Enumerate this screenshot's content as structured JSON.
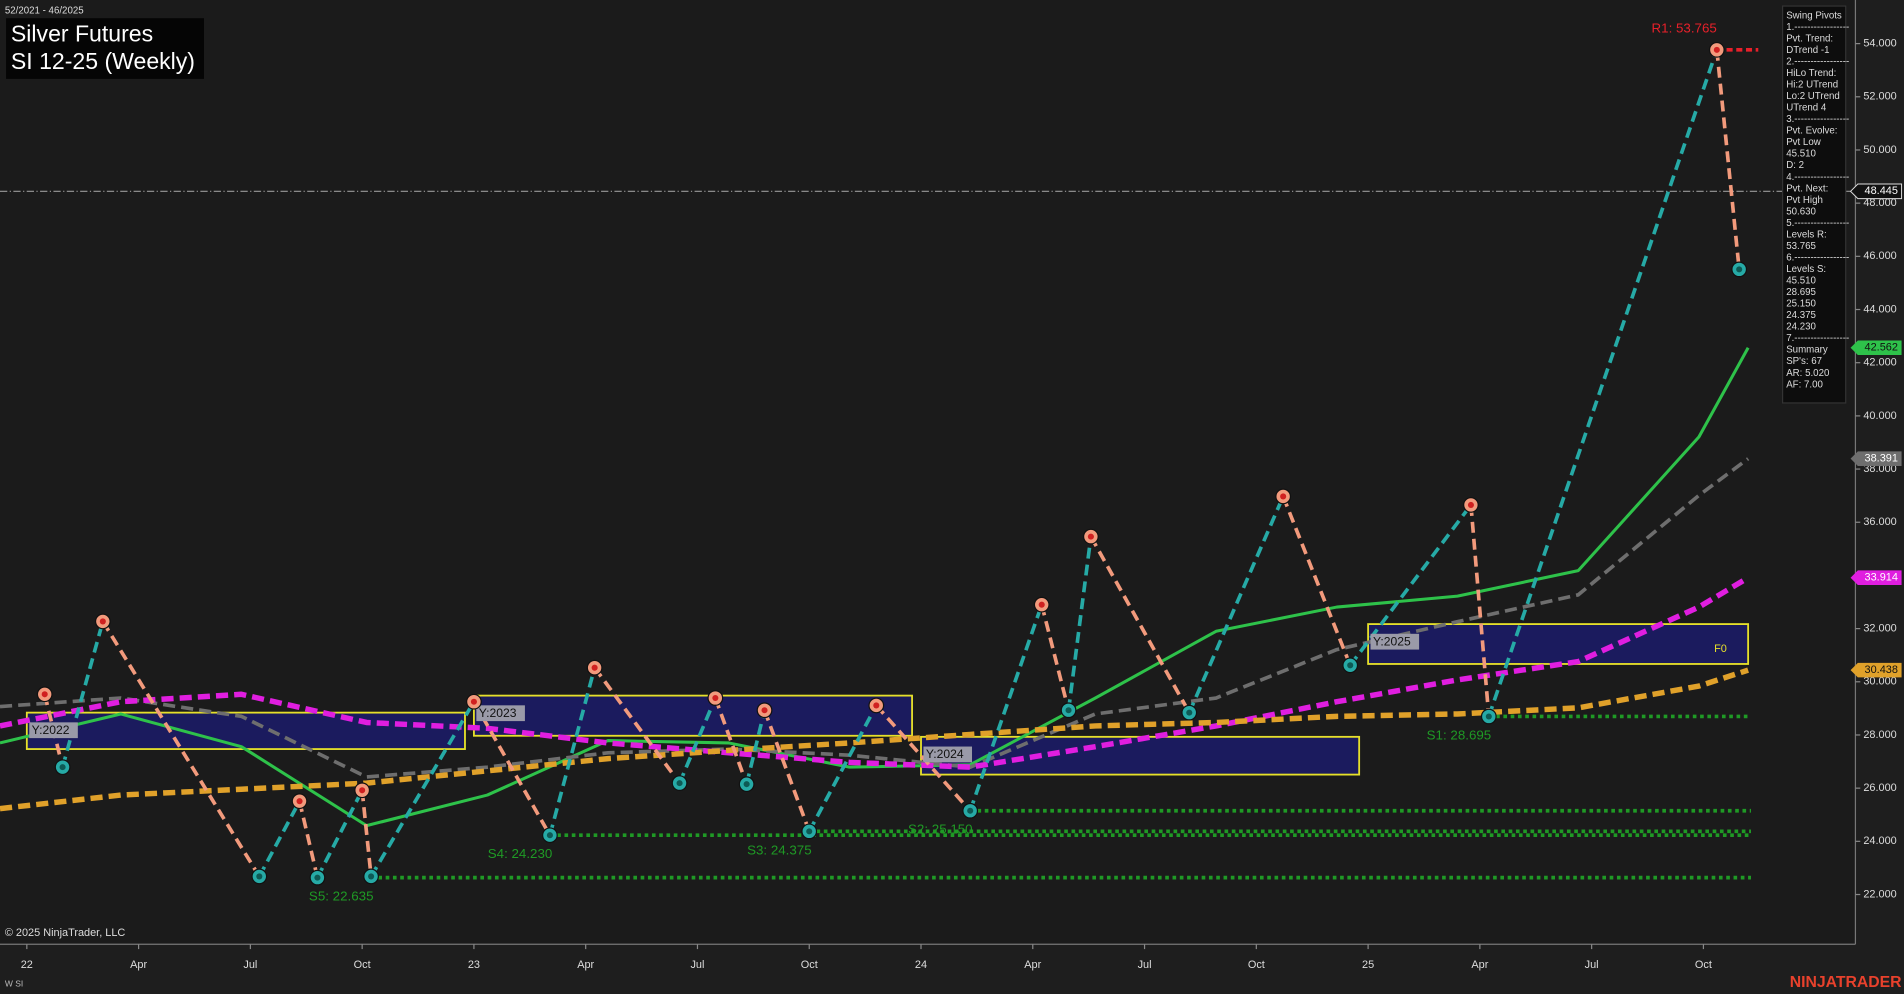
{
  "chart_data": {
    "type": "line",
    "date_range": "52/2021 - 46/2025",
    "title": "Silver Futures",
    "subtitle": "SI 12-25 (Weekly)",
    "xlim": [
      2021.94,
      2026.09
    ],
    "xticks": [
      {
        "value": 2022,
        "label": "22"
      },
      {
        "value": 2022.25,
        "label": "Apr"
      },
      {
        "value": 2022.5,
        "label": "Jul"
      },
      {
        "value": 2022.75,
        "label": "Oct"
      },
      {
        "value": 2023,
        "label": "23"
      },
      {
        "value": 2023.25,
        "label": "Apr"
      },
      {
        "value": 2023.5,
        "label": "Jul"
      },
      {
        "value": 2023.75,
        "label": "Oct"
      },
      {
        "value": 2024,
        "label": "24"
      },
      {
        "value": 2024.25,
        "label": "Apr"
      },
      {
        "value": 2024.5,
        "label": "Jul"
      },
      {
        "value": 2024.75,
        "label": "Oct"
      },
      {
        "value": 2025,
        "label": "25"
      },
      {
        "value": 2025.25,
        "label": "Apr"
      },
      {
        "value": 2025.5,
        "label": "Jul"
      },
      {
        "value": 2025.75,
        "label": "Oct"
      }
    ],
    "ylim": [
      20.13,
      55.64
    ],
    "yticks": [
      {
        "value": 22,
        "label": "22.000"
      },
      {
        "value": 24,
        "label": "24.000"
      },
      {
        "value": 26,
        "label": "26.000"
      },
      {
        "value": 28,
        "label": "28.000"
      },
      {
        "value": 30,
        "label": "30.000"
      },
      {
        "value": 32,
        "label": "32.000"
      },
      {
        "value": 34,
        "label": "34.000"
      },
      {
        "value": 36,
        "label": "36.000"
      },
      {
        "value": 38,
        "label": "38.000"
      },
      {
        "value": 40,
        "label": "40.000"
      },
      {
        "value": 42,
        "label": "42.000"
      },
      {
        "value": 44,
        "label": "44.000"
      },
      {
        "value": 46,
        "label": "46.000"
      },
      {
        "value": 48,
        "label": "48.000"
      },
      {
        "value": 50,
        "label": "50.000"
      },
      {
        "value": 52,
        "label": "52.000"
      },
      {
        "value": 54,
        "label": "54.000"
      }
    ],
    "last_price": 48.445,
    "pivots": {
      "up_color": "#26aaa6",
      "down_color": "#f29a7c",
      "x": [
        2022.04,
        2022.08,
        2022.17,
        2022.52,
        2022.61,
        2022.65,
        2022.75,
        2022.77,
        2023.0,
        2023.17,
        2023.27,
        2023.46,
        2023.54,
        2023.61,
        2023.65,
        2023.75,
        2023.9,
        2024.11,
        2024.27,
        2024.33,
        2024.38,
        2024.6,
        2024.81,
        2024.96,
        2025.23,
        2025.27,
        2025.78,
        2025.83
      ],
      "values": [
        29.53,
        26.79,
        32.27,
        22.68,
        25.51,
        22.635,
        25.92,
        22.68,
        29.25,
        24.23,
        30.53,
        26.19,
        29.39,
        26.15,
        28.93,
        24.375,
        29.11,
        25.15,
        32.9,
        28.93,
        35.46,
        28.84,
        36.97,
        30.62,
        36.65,
        28.695,
        53.765,
        45.51
      ]
    },
    "x": [
      2021.94,
      2022.21,
      2022.48,
      2022.76,
      2023.03,
      2023.3,
      2023.57,
      2023.84,
      2024.11,
      2024.39,
      2024.66,
      2024.93,
      2025.2,
      2025.47,
      2025.74,
      2025.85
    ],
    "series": [
      {
        "color": "#2ec24a",
        "dashed": false,
        "values": [
          27.7,
          28.79,
          27.56,
          24.59,
          25.74,
          27.79,
          27.7,
          26.79,
          26.88,
          29.39,
          31.9,
          32.81,
          33.22,
          34.18,
          39.21,
          42.562
        ]
      },
      {
        "color": "#6e6e6e",
        "dashed": true,
        "values": [
          29.07,
          29.39,
          28.7,
          26.42,
          26.79,
          27.33,
          27.47,
          27.24,
          26.79,
          28.79,
          29.39,
          31.21,
          32.26,
          33.27,
          37.01,
          38.391
        ]
      },
      {
        "color": "#e01ee0",
        "dashed": true,
        "values": [
          28.34,
          29.25,
          29.53,
          28.47,
          28.25,
          27.7,
          27.33,
          26.97,
          26.79,
          27.56,
          28.34,
          29.25,
          30.07,
          30.76,
          32.81,
          33.914
        ]
      },
      {
        "color": "#e0a12a",
        "dashed": true,
        "values": [
          25.23,
          25.74,
          25.96,
          26.19,
          26.65,
          27.11,
          27.42,
          27.7,
          28.02,
          28.34,
          28.47,
          28.7,
          28.79,
          29.02,
          29.84,
          30.438
        ]
      }
    ],
    "resistance": [
      {
        "value": 53.765,
        "label": "R1: 53.765",
        "x": 2025.78,
        "color": "#e8202a"
      }
    ],
    "support_color": "#1f9a25",
    "support": [
      {
        "value": 28.695,
        "label": "S1: 28.695",
        "x": 2025.27
      },
      {
        "value": 25.15,
        "label": "S2: 25.150",
        "x": 2024.11
      },
      {
        "value": 24.375,
        "label": "S3: 24.375",
        "x": 2023.75
      },
      {
        "value": 24.23,
        "label": "S4: 24.230",
        "x": 2023.17
      },
      {
        "value": 22.635,
        "label": "S5: 22.635",
        "x": 2022.77
      }
    ],
    "year_boxes": [
      {
        "label": "Y:2022",
        "x": [
          2022.0,
          2022.98
        ],
        "y": [
          27.47,
          28.84
        ]
      },
      {
        "label": "Y:2023",
        "x": [
          2023.0,
          2023.98
        ],
        "y": [
          27.97,
          29.48
        ]
      },
      {
        "label": "Y:2024",
        "x": [
          2024.0,
          2024.98
        ],
        "y": [
          26.51,
          27.93
        ]
      },
      {
        "label": "Y:2025",
        "x": [
          2025.0,
          2025.85
        ],
        "y": [
          30.67,
          32.17
        ],
        "note": "F0"
      }
    ]
  },
  "panel": {
    "lines": [
      "Swing Pivots",
      "1.-----------------",
      "Pvt. Trend:",
      "DTrend -1",
      "2.-----------------",
      "HiLo Trend:",
      "Hi:2 UTrend",
      "Lo:2 UTrend",
      "UTrend 4",
      "3.-----------------",
      "Pvt. Evolve:",
      "Pvt Low",
      "45.510",
      "D: 2",
      "4.-----------------",
      "Pvt. Next:",
      "Pvt High",
      "50.630",
      "5.-----------------",
      "Levels R:",
      "53.765",
      "6.-----------------",
      "Levels S:",
      "45.510",
      "28.695",
      "25.150",
      "24.375",
      "24.230",
      "7.-----------------",
      "Summary",
      "SP's: 67",
      "AR: 5.020",
      "AF: 7.00"
    ]
  },
  "footer": {
    "copyright": "© 2025 NinjaTrader, LLC",
    "instrument": "W SI",
    "brand": "NINJATRADER"
  }
}
